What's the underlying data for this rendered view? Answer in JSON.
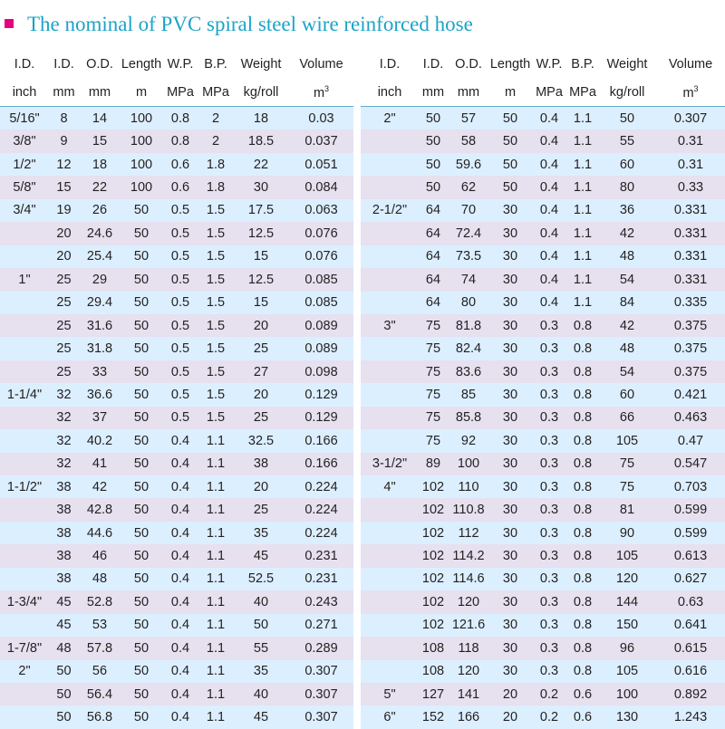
{
  "title": "The nominal of PVC spiral steel wire reinforced hose",
  "colors": {
    "accent_square": "#e4007f",
    "title": "#1aa3c8",
    "row_blue": "#dcefff",
    "row_lavender": "#e6e0ef"
  },
  "headers": {
    "row1": [
      "I.D.",
      "I.D.",
      "O.D.",
      "Length",
      "W.P.",
      "B.P.",
      "Weight",
      "Volume"
    ],
    "row2": [
      "inch",
      "mm",
      "mm",
      "m",
      "MPa",
      "MPa",
      "kg/roll",
      "m"
    ],
    "volume_unit_sup": "3"
  },
  "left_rows": [
    [
      "5/16\"",
      "8",
      "14",
      "100",
      "0.8",
      "2",
      "18",
      "0.03"
    ],
    [
      "3/8\"",
      "9",
      "15",
      "100",
      "0.8",
      "2",
      "18.5",
      "0.037"
    ],
    [
      "1/2\"",
      "12",
      "18",
      "100",
      "0.6",
      "1.8",
      "22",
      "0.051"
    ],
    [
      "5/8\"",
      "15",
      "22",
      "100",
      "0.6",
      "1.8",
      "30",
      "0.084"
    ],
    [
      "3/4\"",
      "19",
      "26",
      "50",
      "0.5",
      "1.5",
      "17.5",
      "0.063"
    ],
    [
      "",
      "20",
      "24.6",
      "50",
      "0.5",
      "1.5",
      "12.5",
      "0.076"
    ],
    [
      "",
      "20",
      "25.4",
      "50",
      "0.5",
      "1.5",
      "15",
      "0.076"
    ],
    [
      "1\"",
      "25",
      "29",
      "50",
      "0.5",
      "1.5",
      "12.5",
      "0.085"
    ],
    [
      "",
      "25",
      "29.4",
      "50",
      "0.5",
      "1.5",
      "15",
      "0.085"
    ],
    [
      "",
      "25",
      "31.6",
      "50",
      "0.5",
      "1.5",
      "20",
      "0.089"
    ],
    [
      "",
      "25",
      "31.8",
      "50",
      "0.5",
      "1.5",
      "25",
      "0.089"
    ],
    [
      "",
      "25",
      "33",
      "50",
      "0.5",
      "1.5",
      "27",
      "0.098"
    ],
    [
      "1-1/4\"",
      "32",
      "36.6",
      "50",
      "0.5",
      "1.5",
      "20",
      "0.129"
    ],
    [
      "",
      "32",
      "37",
      "50",
      "0.5",
      "1.5",
      "25",
      "0.129"
    ],
    [
      "",
      "32",
      "40.2",
      "50",
      "0.4",
      "1.1",
      "32.5",
      "0.166"
    ],
    [
      "",
      "32",
      "41",
      "50",
      "0.4",
      "1.1",
      "38",
      "0.166"
    ],
    [
      "1-1/2\"",
      "38",
      "42",
      "50",
      "0.4",
      "1.1",
      "20",
      "0.224"
    ],
    [
      "",
      "38",
      "42.8",
      "50",
      "0.4",
      "1.1",
      "25",
      "0.224"
    ],
    [
      "",
      "38",
      "44.6",
      "50",
      "0.4",
      "1.1",
      "35",
      "0.224"
    ],
    [
      "",
      "38",
      "46",
      "50",
      "0.4",
      "1.1",
      "45",
      "0.231"
    ],
    [
      "",
      "38",
      "48",
      "50",
      "0.4",
      "1.1",
      "52.5",
      "0.231"
    ],
    [
      "1-3/4\"",
      "45",
      "52.8",
      "50",
      "0.4",
      "1.1",
      "40",
      "0.243"
    ],
    [
      "",
      "45",
      "53",
      "50",
      "0.4",
      "1.1",
      "50",
      "0.271"
    ],
    [
      "1-7/8\"",
      "48",
      "57.8",
      "50",
      "0.4",
      "1.1",
      "55",
      "0.289"
    ],
    [
      "2\"",
      "50",
      "56",
      "50",
      "0.4",
      "1.1",
      "35",
      "0.307"
    ],
    [
      "",
      "50",
      "56.4",
      "50",
      "0.4",
      "1.1",
      "40",
      "0.307"
    ],
    [
      "",
      "50",
      "56.8",
      "50",
      "0.4",
      "1.1",
      "45",
      "0.307"
    ]
  ],
  "right_rows": [
    [
      "2\"",
      "50",
      "57",
      "50",
      "0.4",
      "1.1",
      "50",
      "0.307"
    ],
    [
      "",
      "50",
      "58",
      "50",
      "0.4",
      "1.1",
      "55",
      "0.31"
    ],
    [
      "",
      "50",
      "59.6",
      "50",
      "0.4",
      "1.1",
      "60",
      "0.31"
    ],
    [
      "",
      "50",
      "62",
      "50",
      "0.4",
      "1.1",
      "80",
      "0.33"
    ],
    [
      "2-1/2\"",
      "64",
      "70",
      "30",
      "0.4",
      "1.1",
      "36",
      "0.331"
    ],
    [
      "",
      "64",
      "72.4",
      "30",
      "0.4",
      "1.1",
      "42",
      "0.331"
    ],
    [
      "",
      "64",
      "73.5",
      "30",
      "0.4",
      "1.1",
      "48",
      "0.331"
    ],
    [
      "",
      "64",
      "74",
      "30",
      "0.4",
      "1.1",
      "54",
      "0.331"
    ],
    [
      "",
      "64",
      "80",
      "30",
      "0.4",
      "1.1",
      "84",
      "0.335"
    ],
    [
      "3\"",
      "75",
      "81.8",
      "30",
      "0.3",
      "0.8",
      "42",
      "0.375"
    ],
    [
      "",
      "75",
      "82.4",
      "30",
      "0.3",
      "0.8",
      "48",
      "0.375"
    ],
    [
      "",
      "75",
      "83.6",
      "30",
      "0.3",
      "0.8",
      "54",
      "0.375"
    ],
    [
      "",
      "75",
      "85",
      "30",
      "0.3",
      "0.8",
      "60",
      "0.421"
    ],
    [
      "",
      "75",
      "85.8",
      "30",
      "0.3",
      "0.8",
      "66",
      "0.463"
    ],
    [
      "",
      "75",
      "92",
      "30",
      "0.3",
      "0.8",
      "105",
      "0.47"
    ],
    [
      "3-1/2\"",
      "89",
      "100",
      "30",
      "0.3",
      "0.8",
      "75",
      "0.547"
    ],
    [
      "4\"",
      "102",
      "110",
      "30",
      "0.3",
      "0.8",
      "75",
      "0.703"
    ],
    [
      "",
      "102",
      "110.8",
      "30",
      "0.3",
      "0.8",
      "81",
      "0.599"
    ],
    [
      "",
      "102",
      "112",
      "30",
      "0.3",
      "0.8",
      "90",
      "0.599"
    ],
    [
      "",
      "102",
      "114.2",
      "30",
      "0.3",
      "0.8",
      "105",
      "0.613"
    ],
    [
      "",
      "102",
      "114.6",
      "30",
      "0.3",
      "0.8",
      "120",
      "0.627"
    ],
    [
      "",
      "102",
      "120",
      "30",
      "0.3",
      "0.8",
      "144",
      "0.63"
    ],
    [
      "",
      "102",
      "121.6",
      "30",
      "0.3",
      "0.8",
      "150",
      "0.641"
    ],
    [
      "",
      "108",
      "118",
      "30",
      "0.3",
      "0.8",
      "96",
      "0.615"
    ],
    [
      "",
      "108",
      "120",
      "30",
      "0.3",
      "0.8",
      "105",
      "0.616"
    ],
    [
      "5\"",
      "127",
      "141",
      "20",
      "0.2",
      "0.6",
      "100",
      "0.892"
    ],
    [
      "6\"",
      "152",
      "166",
      "20",
      "0.2",
      "0.6",
      "130",
      "1.243"
    ]
  ]
}
